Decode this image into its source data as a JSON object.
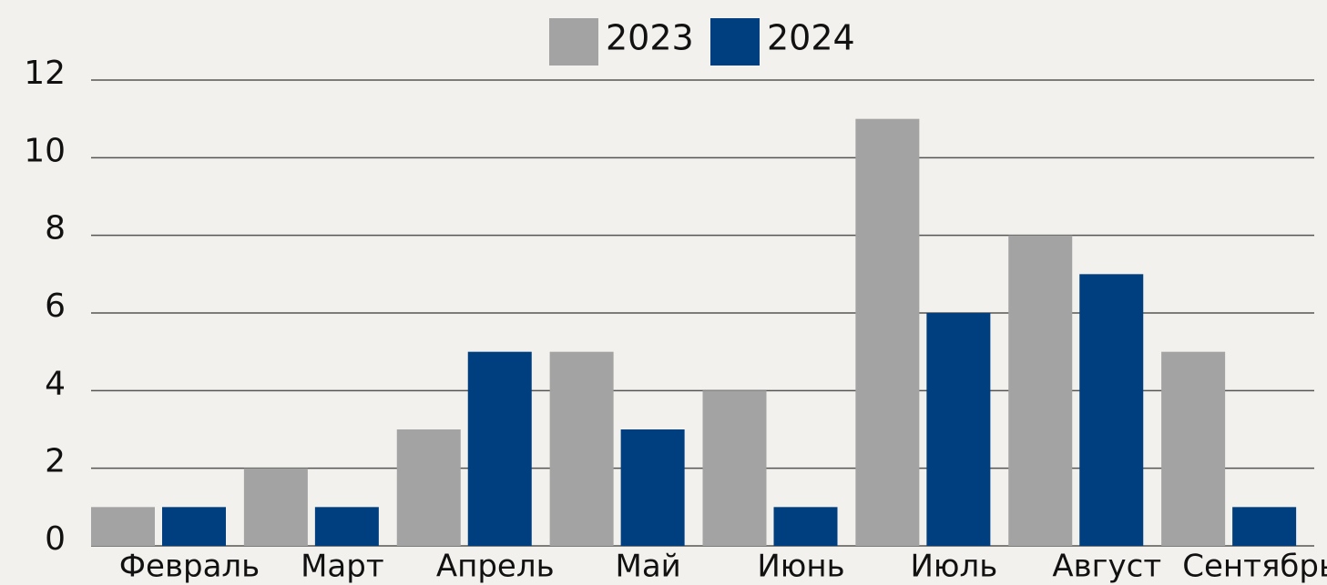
{
  "chart_data": {
    "type": "bar",
    "categories": [
      "Февраль",
      "Март",
      "Апрель",
      "Май",
      "Июнь",
      "Июль",
      "Август",
      "Сентябрь"
    ],
    "series": [
      {
        "name": "2023",
        "color": "#a3a3a3",
        "values": [
          1,
          2,
          3,
          5,
          4,
          11,
          8,
          5
        ]
      },
      {
        "name": "2024",
        "color": "#003f7f",
        "values": [
          1,
          1,
          5,
          3,
          1,
          6,
          7,
          1
        ]
      }
    ],
    "ylim": [
      0,
      12
    ],
    "yticks": [
      0,
      2,
      4,
      6,
      8,
      10,
      12
    ],
    "grid": true,
    "legend": "top"
  }
}
